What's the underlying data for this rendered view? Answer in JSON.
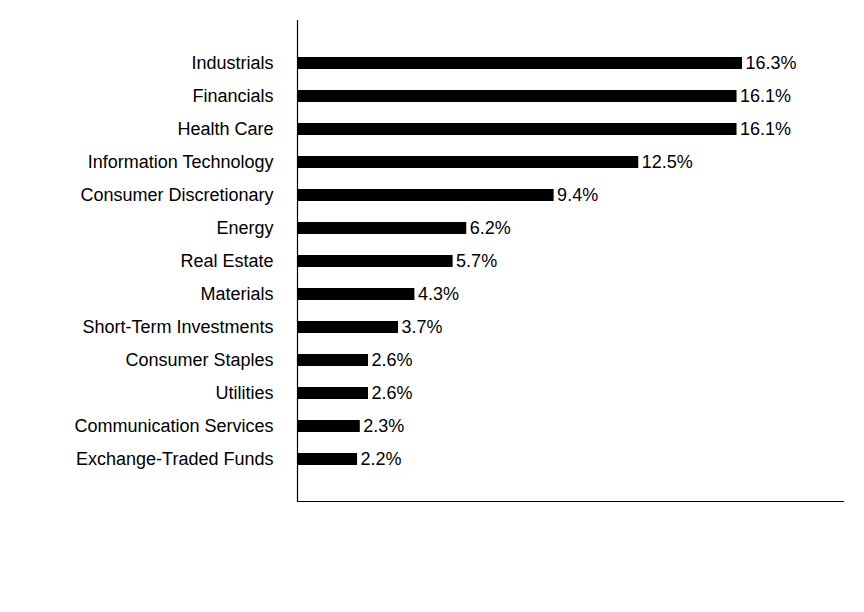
{
  "chart_data": {
    "type": "bar",
    "orientation": "horizontal",
    "categories": [
      "Industrials",
      "Financials",
      "Health Care",
      "Information Technology",
      "Consumer Discretionary",
      "Energy",
      "Real Estate",
      "Materials",
      "Short-Term Investments",
      "Consumer Staples",
      "Utilities",
      "Communication Services",
      "Exchange-Traded Funds"
    ],
    "values": [
      16.3,
      16.1,
      16.1,
      12.5,
      9.4,
      6.2,
      5.7,
      4.3,
      3.7,
      2.6,
      2.6,
      2.3,
      2.2
    ],
    "value_labels": [
      "16.3%",
      "16.1%",
      "16.1%",
      "12.5%",
      "9.4%",
      "6.2%",
      "5.7%",
      "4.3%",
      "3.7%",
      "2.6%",
      "2.6%",
      "2.3%",
      "2.2%"
    ],
    "color": "#000000",
    "xlim": [
      0,
      20
    ],
    "grid": false,
    "data_labels": true,
    "tick_labels": "y"
  }
}
